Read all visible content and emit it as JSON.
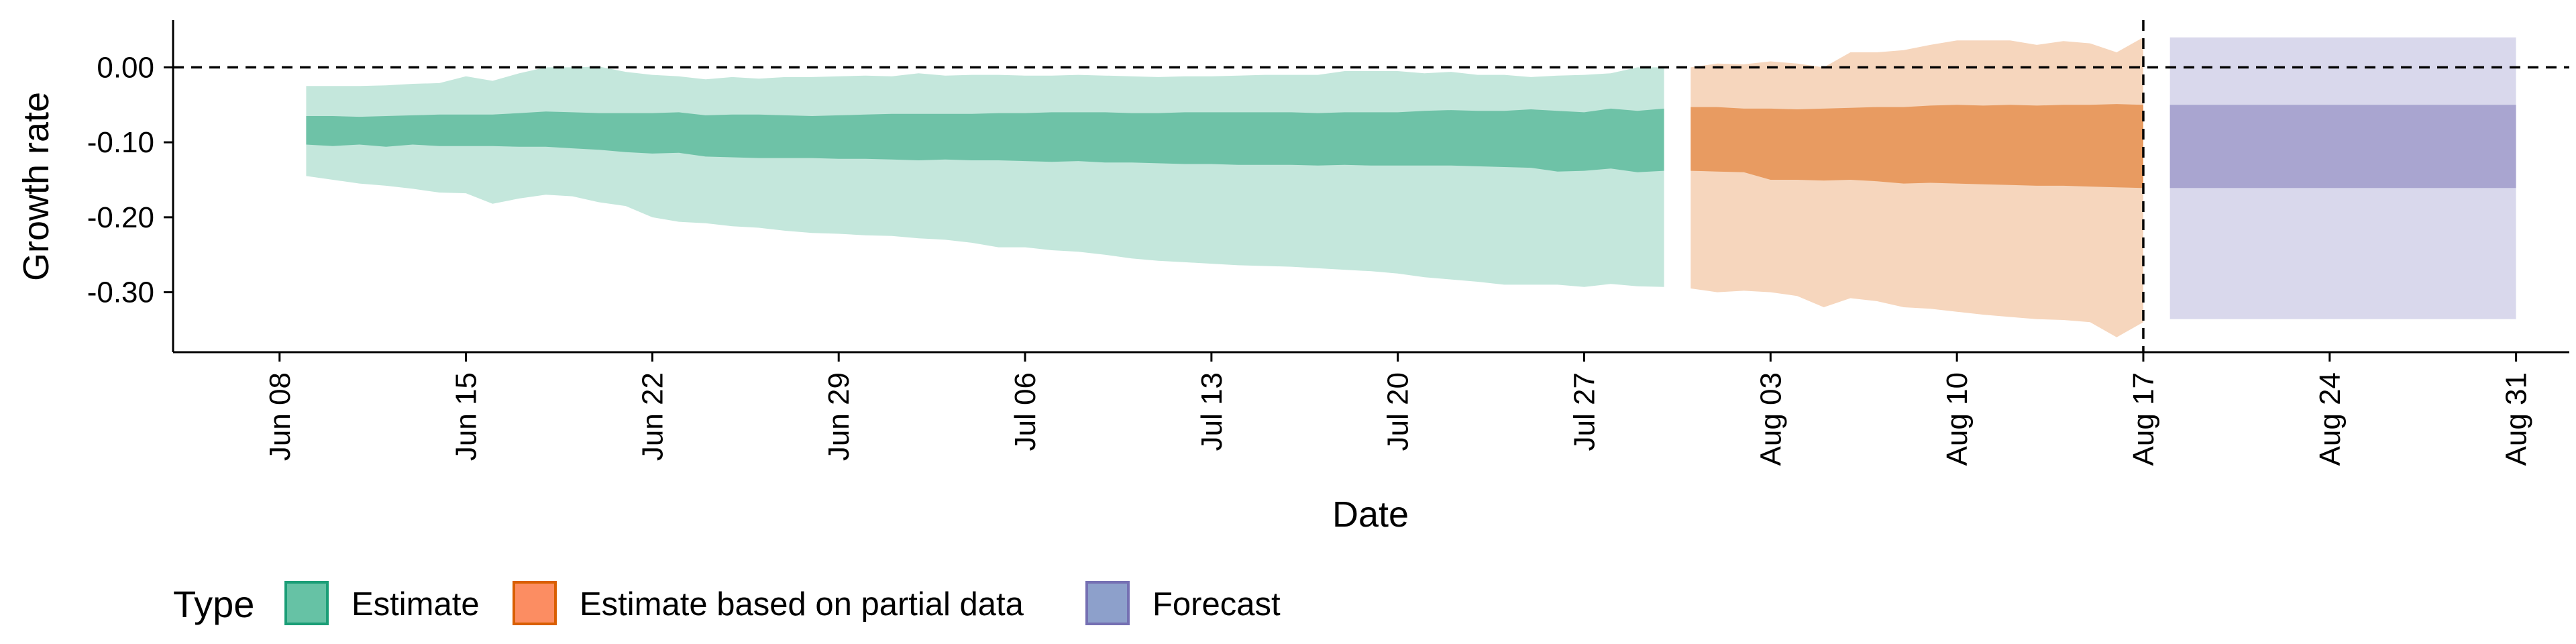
{
  "chart_data": {
    "type": "area",
    "xlabel": "Date",
    "ylabel": "Growth rate",
    "ylim": [
      -0.38,
      0.063
    ],
    "xlim": [
      "2020-06-04",
      "2020-09-02"
    ],
    "y_ticks": [
      0.0,
      -0.1,
      -0.2,
      -0.3
    ],
    "y_tick_labels": [
      "0.00",
      "-0.10",
      "-0.20",
      "-0.30"
    ],
    "x_ticks": [
      "2020-06-08",
      "2020-06-15",
      "2020-06-22",
      "2020-06-29",
      "2020-07-06",
      "2020-07-13",
      "2020-07-20",
      "2020-07-27",
      "2020-08-03",
      "2020-08-10",
      "2020-08-17",
      "2020-08-24",
      "2020-08-31"
    ],
    "x_tick_labels": [
      "Jun 08",
      "Jun 15",
      "Jun 22",
      "Jun 29",
      "Jul 06",
      "Jul 13",
      "Jul 20",
      "Jul 27",
      "Aug 03",
      "Aug 10",
      "Aug 17",
      "Aug 24",
      "Aug 31"
    ],
    "reference_lines": [
      {
        "orientation": "horizontal",
        "value": 0.0,
        "style": "dashed"
      },
      {
        "orientation": "vertical",
        "value": "2020-08-17",
        "style": "dashed"
      }
    ],
    "legend": {
      "title": "Type",
      "position": "bottom-left",
      "entries": [
        {
          "label": "Estimate",
          "color": "#66c2a5"
        },
        {
          "label": "Estimate based on partial data",
          "color": "#fc8d62"
        },
        {
          "label": "Forecast",
          "color": "#8da0cb"
        }
      ]
    },
    "series": [
      {
        "name": "Estimate",
        "fill": "#6ec2a7",
        "outer_fill": "#c4e7dc",
        "points": [
          {
            "x": "2020-06-09",
            "lo90": -0.145,
            "lo50": -0.103,
            "hi50": -0.065,
            "hi90": -0.025
          },
          {
            "x": "2020-06-10",
            "lo90": -0.15,
            "lo50": -0.105,
            "hi50": -0.065,
            "hi90": -0.025
          },
          {
            "x": "2020-06-11",
            "lo90": -0.155,
            "lo50": -0.103,
            "hi50": -0.066,
            "hi90": -0.025
          },
          {
            "x": "2020-06-12",
            "lo90": -0.158,
            "lo50": -0.106,
            "hi50": -0.065,
            "hi90": -0.024
          },
          {
            "x": "2020-06-13",
            "lo90": -0.162,
            "lo50": -0.103,
            "hi50": -0.064,
            "hi90": -0.022
          },
          {
            "x": "2020-06-14",
            "lo90": -0.167,
            "lo50": -0.105,
            "hi50": -0.063,
            "hi90": -0.021
          },
          {
            "x": "2020-06-15",
            "lo90": -0.168,
            "lo50": -0.105,
            "hi50": -0.063,
            "hi90": -0.012
          },
          {
            "x": "2020-06-16",
            "lo90": -0.182,
            "lo50": -0.105,
            "hi50": -0.063,
            "hi90": -0.018
          },
          {
            "x": "2020-06-17",
            "lo90": -0.175,
            "lo50": -0.106,
            "hi50": -0.061,
            "hi90": -0.008
          },
          {
            "x": "2020-06-18",
            "lo90": -0.17,
            "lo50": -0.106,
            "hi50": -0.059,
            "hi90": 0.0
          },
          {
            "x": "2020-06-19",
            "lo90": -0.172,
            "lo50": -0.108,
            "hi50": -0.06,
            "hi90": 0.0
          },
          {
            "x": "2020-06-20",
            "lo90": -0.18,
            "lo50": -0.11,
            "hi50": -0.061,
            "hi90": 0.001
          },
          {
            "x": "2020-06-21",
            "lo90": -0.185,
            "lo50": -0.113,
            "hi50": -0.061,
            "hi90": -0.006
          },
          {
            "x": "2020-06-22",
            "lo90": -0.2,
            "lo50": -0.115,
            "hi50": -0.061,
            "hi90": -0.01
          },
          {
            "x": "2020-06-23",
            "lo90": -0.206,
            "lo50": -0.114,
            "hi50": -0.06,
            "hi90": -0.012
          },
          {
            "x": "2020-06-24",
            "lo90": -0.208,
            "lo50": -0.119,
            "hi50": -0.064,
            "hi90": -0.016
          },
          {
            "x": "2020-06-25",
            "lo90": -0.212,
            "lo50": -0.12,
            "hi50": -0.063,
            "hi90": -0.013
          },
          {
            "x": "2020-06-26",
            "lo90": -0.214,
            "lo50": -0.121,
            "hi50": -0.063,
            "hi90": -0.015
          },
          {
            "x": "2020-06-27",
            "lo90": -0.218,
            "lo50": -0.121,
            "hi50": -0.064,
            "hi90": -0.013
          },
          {
            "x": "2020-06-28",
            "lo90": -0.221,
            "lo50": -0.121,
            "hi50": -0.065,
            "hi90": -0.013
          },
          {
            "x": "2020-06-29",
            "lo90": -0.222,
            "lo50": -0.122,
            "hi50": -0.064,
            "hi90": -0.012
          },
          {
            "x": "2020-06-30",
            "lo90": -0.224,
            "lo50": -0.122,
            "hi50": -0.063,
            "hi90": -0.011
          },
          {
            "x": "2020-07-01",
            "lo90": -0.225,
            "lo50": -0.123,
            "hi50": -0.062,
            "hi90": -0.012
          },
          {
            "x": "2020-07-02",
            "lo90": -0.228,
            "lo50": -0.124,
            "hi50": -0.062,
            "hi90": -0.008
          },
          {
            "x": "2020-07-03",
            "lo90": -0.23,
            "lo50": -0.123,
            "hi50": -0.062,
            "hi90": -0.011
          },
          {
            "x": "2020-07-04",
            "lo90": -0.234,
            "lo50": -0.124,
            "hi50": -0.062,
            "hi90": -0.01
          },
          {
            "x": "2020-07-05",
            "lo90": -0.24,
            "lo50": -0.124,
            "hi50": -0.061,
            "hi90": -0.01
          },
          {
            "x": "2020-07-06",
            "lo90": -0.24,
            "lo50": -0.125,
            "hi50": -0.061,
            "hi90": -0.011
          },
          {
            "x": "2020-07-07",
            "lo90": -0.244,
            "lo50": -0.126,
            "hi50": -0.06,
            "hi90": -0.011
          },
          {
            "x": "2020-07-08",
            "lo90": -0.246,
            "lo50": -0.125,
            "hi50": -0.06,
            "hi90": -0.01
          },
          {
            "x": "2020-07-09",
            "lo90": -0.25,
            "lo50": -0.127,
            "hi50": -0.06,
            "hi90": -0.011
          },
          {
            "x": "2020-07-10",
            "lo90": -0.255,
            "lo50": -0.127,
            "hi50": -0.061,
            "hi90": -0.012
          },
          {
            "x": "2020-07-11",
            "lo90": -0.258,
            "lo50": -0.128,
            "hi50": -0.061,
            "hi90": -0.013
          },
          {
            "x": "2020-07-12",
            "lo90": -0.26,
            "lo50": -0.129,
            "hi50": -0.06,
            "hi90": -0.012
          },
          {
            "x": "2020-07-13",
            "lo90": -0.262,
            "lo50": -0.129,
            "hi50": -0.06,
            "hi90": -0.012
          },
          {
            "x": "2020-07-14",
            "lo90": -0.264,
            "lo50": -0.13,
            "hi50": -0.06,
            "hi90": -0.011
          },
          {
            "x": "2020-07-15",
            "lo90": -0.265,
            "lo50": -0.13,
            "hi50": -0.06,
            "hi90": -0.01
          },
          {
            "x": "2020-07-16",
            "lo90": -0.266,
            "lo50": -0.13,
            "hi50": -0.06,
            "hi90": -0.01
          },
          {
            "x": "2020-07-17",
            "lo90": -0.268,
            "lo50": -0.131,
            "hi50": -0.061,
            "hi90": -0.01
          },
          {
            "x": "2020-07-18",
            "lo90": -0.27,
            "lo50": -0.13,
            "hi50": -0.06,
            "hi90": -0.005
          },
          {
            "x": "2020-07-19",
            "lo90": -0.272,
            "lo50": -0.131,
            "hi50": -0.06,
            "hi90": -0.005
          },
          {
            "x": "2020-07-20",
            "lo90": -0.275,
            "lo50": -0.131,
            "hi50": -0.06,
            "hi90": -0.005
          },
          {
            "x": "2020-07-21",
            "lo90": -0.28,
            "lo50": -0.131,
            "hi50": -0.058,
            "hi90": -0.008
          },
          {
            "x": "2020-07-22",
            "lo90": -0.283,
            "lo50": -0.131,
            "hi50": -0.057,
            "hi90": -0.006
          },
          {
            "x": "2020-07-23",
            "lo90": -0.286,
            "lo50": -0.132,
            "hi50": -0.058,
            "hi90": -0.01
          },
          {
            "x": "2020-07-24",
            "lo90": -0.29,
            "lo50": -0.133,
            "hi50": -0.058,
            "hi90": -0.01
          },
          {
            "x": "2020-07-25",
            "lo90": -0.29,
            "lo50": -0.134,
            "hi50": -0.056,
            "hi90": -0.013
          },
          {
            "x": "2020-07-26",
            "lo90": -0.29,
            "lo50": -0.139,
            "hi50": -0.058,
            "hi90": -0.011
          },
          {
            "x": "2020-07-27",
            "lo90": -0.293,
            "lo50": -0.138,
            "hi50": -0.06,
            "hi90": -0.01
          },
          {
            "x": "2020-07-28",
            "lo90": -0.289,
            "lo50": -0.135,
            "hi50": -0.055,
            "hi90": -0.008
          },
          {
            "x": "2020-07-29",
            "lo90": -0.292,
            "lo50": -0.14,
            "hi50": -0.058,
            "hi90": 0.0
          },
          {
            "x": "2020-07-30",
            "lo90": -0.293,
            "lo50": -0.138,
            "hi50": -0.055,
            "hi90": 0.0
          }
        ]
      },
      {
        "name": "Estimate based on partial data",
        "fill": "#e89b61",
        "outer_fill": "#f6d6bd",
        "points": [
          {
            "x": "2020-07-31",
            "lo90": -0.295,
            "lo50": -0.138,
            "hi50": -0.053,
            "hi90": 0.0
          },
          {
            "x": "2020-08-01",
            "lo90": -0.3,
            "lo50": -0.139,
            "hi50": -0.053,
            "hi90": 0.005
          },
          {
            "x": "2020-08-02",
            "lo90": -0.298,
            "lo50": -0.14,
            "hi50": -0.055,
            "hi90": 0.004
          },
          {
            "x": "2020-08-03",
            "lo90": -0.3,
            "lo50": -0.15,
            "hi50": -0.055,
            "hi90": 0.008
          },
          {
            "x": "2020-08-04",
            "lo90": -0.305,
            "lo50": -0.15,
            "hi50": -0.056,
            "hi90": 0.005
          },
          {
            "x": "2020-08-05",
            "lo90": -0.32,
            "lo50": -0.151,
            "hi50": -0.055,
            "hi90": 0.0
          },
          {
            "x": "2020-08-06",
            "lo90": -0.308,
            "lo50": -0.15,
            "hi50": -0.054,
            "hi90": 0.02
          },
          {
            "x": "2020-08-07",
            "lo90": -0.312,
            "lo50": -0.152,
            "hi50": -0.053,
            "hi90": 0.02
          },
          {
            "x": "2020-08-08",
            "lo90": -0.32,
            "lo50": -0.155,
            "hi50": -0.053,
            "hi90": 0.023
          },
          {
            "x": "2020-08-09",
            "lo90": -0.322,
            "lo50": -0.154,
            "hi50": -0.051,
            "hi90": 0.03
          },
          {
            "x": "2020-08-10",
            "lo90": -0.326,
            "lo50": -0.155,
            "hi50": -0.05,
            "hi90": 0.036
          },
          {
            "x": "2020-08-11",
            "lo90": -0.33,
            "lo50": -0.156,
            "hi50": -0.051,
            "hi90": 0.036
          },
          {
            "x": "2020-08-12",
            "lo90": -0.333,
            "lo50": -0.157,
            "hi50": -0.05,
            "hi90": 0.036
          },
          {
            "x": "2020-08-13",
            "lo90": -0.336,
            "lo50": -0.158,
            "hi50": -0.051,
            "hi90": 0.03
          },
          {
            "x": "2020-08-14",
            "lo90": -0.337,
            "lo50": -0.158,
            "hi50": -0.05,
            "hi90": 0.035
          },
          {
            "x": "2020-08-15",
            "lo90": -0.34,
            "lo50": -0.159,
            "hi50": -0.05,
            "hi90": 0.032
          },
          {
            "x": "2020-08-16",
            "lo90": -0.36,
            "lo50": -0.16,
            "hi50": -0.049,
            "hi90": 0.02
          },
          {
            "x": "2020-08-17",
            "lo90": -0.34,
            "lo50": -0.161,
            "hi50": -0.05,
            "hi90": 0.04
          }
        ]
      },
      {
        "name": "Forecast",
        "fill": "#a9a5d0",
        "outer_fill": "#d9d8ec",
        "points": [
          {
            "x": "2020-08-18",
            "lo90": -0.336,
            "lo50": -0.161,
            "hi50": -0.05,
            "hi90": 0.04
          },
          {
            "x": "2020-08-31",
            "lo90": -0.336,
            "lo50": -0.161,
            "hi50": -0.05,
            "hi90": 0.04
          }
        ]
      }
    ]
  }
}
